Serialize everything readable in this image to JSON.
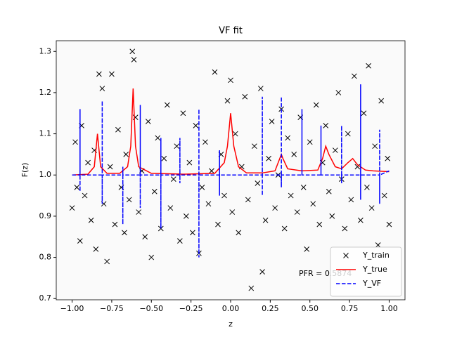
{
  "chart_data": {
    "type": "scatter",
    "title": "VF fit",
    "xlabel": "z",
    "ylabel": "F(z)",
    "xlim": [
      -1.1,
      1.1
    ],
    "ylim": [
      0.697,
      1.326
    ],
    "xticks": [
      {
        "value": -1,
        "label": "−1.00"
      },
      {
        "value": -0.75,
        "label": "−0.75"
      },
      {
        "value": -0.5,
        "label": "−0.50"
      },
      {
        "value": -0.25,
        "label": "−0.25"
      },
      {
        "value": 0,
        "label": "0.00"
      },
      0.25,
      {
        "value": 0.5,
        "label": "0.50"
      },
      0.75,
      {
        "value": 1,
        "label": "1.00"
      }
    ],
    "yticks": [
      0.7,
      0.8,
      0.9,
      {
        "value": 1.0,
        "label": "1.0"
      },
      1.1,
      1.2,
      1.3
    ],
    "legend": "lower right",
    "annotation": "PFR = 0.5874",
    "background": "#fafafa",
    "series": [
      {
        "name": "Y_train",
        "type": "scatter",
        "color": "#000000",
        "x": [
          -1.0,
          -0.98,
          -0.97,
          -0.95,
          -0.94,
          -0.92,
          -0.9,
          -0.88,
          -0.86,
          -0.85,
          -0.83,
          -0.81,
          -0.8,
          -0.78,
          -0.76,
          -0.75,
          -0.73,
          -0.71,
          -0.69,
          -0.67,
          -0.66,
          -0.64,
          -0.62,
          -0.61,
          -0.6,
          -0.58,
          -0.56,
          -0.54,
          -0.52,
          -0.5,
          -0.48,
          -0.46,
          -0.44,
          -0.42,
          -0.4,
          -0.38,
          -0.36,
          -0.34,
          -0.32,
          -0.3,
          -0.28,
          -0.26,
          -0.24,
          -0.22,
          -0.2,
          -0.18,
          -0.16,
          -0.14,
          -0.12,
          -0.1,
          -0.08,
          -0.06,
          -0.04,
          -0.02,
          0.0,
          0.01,
          0.03,
          0.05,
          0.07,
          0.09,
          0.11,
          0.13,
          0.15,
          0.17,
          0.19,
          0.2,
          0.22,
          0.24,
          0.26,
          0.28,
          0.3,
          0.32,
          0.34,
          0.36,
          0.38,
          0.4,
          0.42,
          0.44,
          0.46,
          0.48,
          0.5,
          0.52,
          0.54,
          0.56,
          0.58,
          0.6,
          0.62,
          0.64,
          0.66,
          0.68,
          0.7,
          0.72,
          0.74,
          0.76,
          0.78,
          0.8,
          0.82,
          0.84,
          0.86,
          0.87,
          0.89,
          0.91,
          0.93,
          0.95,
          0.97,
          0.99,
          1.0
        ],
        "y": [
          0.92,
          1.08,
          0.97,
          0.84,
          1.12,
          0.95,
          1.03,
          0.89,
          1.06,
          0.82,
          1.245,
          1.21,
          0.93,
          0.79,
          1.02,
          1.245,
          0.88,
          1.11,
          0.97,
          0.86,
          1.05,
          0.94,
          1.3,
          1.28,
          1.14,
          0.91,
          1.01,
          0.85,
          1.13,
          0.8,
          0.96,
          1.09,
          0.87,
          1.04,
          1.17,
          0.92,
          0.99,
          1.07,
          0.84,
          1.15,
          0.9,
          1.03,
          0.86,
          1.12,
          0.81,
          0.97,
          1.08,
          0.93,
          1.01,
          1.25,
          0.88,
          1.05,
          0.95,
          1.18,
          1.23,
          0.91,
          1.1,
          0.86,
          1.02,
          1.19,
          0.94,
          0.725,
          1.07,
          0.98,
          1.21,
          0.765,
          0.89,
          1.04,
          1.13,
          0.92,
          1.0,
          1.16,
          0.87,
          1.09,
          0.95,
          1.05,
          0.91,
          1.14,
          0.97,
          0.82,
          1.08,
          0.93,
          1.17,
          0.88,
          1.03,
          1.12,
          0.96,
          0.9,
          1.06,
          1.2,
          0.99,
          0.87,
          1.1,
          0.94,
          1.24,
          1.02,
          0.89,
          1.15,
          0.97,
          1.265,
          0.92,
          1.07,
          0.83,
          1.18,
          0.95,
          1.04,
          0.88
        ]
      },
      {
        "name": "Y_true",
        "type": "line",
        "color": "#ff0000",
        "x": [
          -1,
          -0.9,
          -0.86,
          -0.84,
          -0.82,
          -0.78,
          -0.7,
          -0.65,
          -0.63,
          -0.615,
          -0.6,
          -0.58,
          -0.5,
          -0.3,
          -0.1,
          -0.04,
          -0.02,
          0.0,
          0.02,
          0.05,
          0.1,
          0.2,
          0.28,
          0.31,
          0.32,
          0.33,
          0.36,
          0.45,
          0.55,
          0.58,
          0.6,
          0.62,
          0.66,
          0.7,
          0.74,
          0.77,
          0.8,
          0.85,
          0.9,
          1.0
        ],
        "y": [
          1.0,
          1.002,
          1.02,
          1.1,
          1.02,
          1.004,
          1.004,
          1.02,
          1.07,
          1.21,
          1.07,
          1.02,
          1.004,
          1.002,
          1.004,
          1.03,
          1.07,
          1.15,
          1.07,
          1.02,
          1.005,
          1.005,
          1.01,
          1.04,
          1.05,
          1.04,
          1.015,
          1.01,
          1.012,
          1.04,
          1.07,
          1.05,
          1.02,
          1.015,
          1.03,
          1.04,
          1.025,
          1.012,
          1.01,
          1.008
        ]
      },
      {
        "name": "Y_VF",
        "type": "line",
        "dashed": true,
        "color": "#0000ff",
        "x": [
          -1,
          -0.95,
          -0.95,
          -0.95,
          -0.95,
          -0.81,
          -0.81,
          -0.81,
          -0.81,
          -0.68,
          -0.68,
          -0.68,
          -0.68,
          -0.57,
          -0.57,
          -0.57,
          -0.57,
          -0.44,
          -0.44,
          -0.44,
          -0.44,
          -0.32,
          -0.32,
          -0.32,
          -0.32,
          -0.2,
          -0.2,
          -0.2,
          -0.2,
          -0.07,
          -0.07,
          -0.07,
          -0.07,
          0.2,
          0.2,
          0.2,
          0.2,
          0.32,
          0.32,
          0.32,
          0.32,
          0.45,
          0.45,
          0.45,
          0.45,
          0.57,
          0.57,
          0.57,
          0.57,
          0.7,
          0.7,
          0.7,
          0.7,
          0.82,
          0.82,
          0.82,
          0.82,
          0.94,
          0.94,
          0.94,
          0.94,
          1
        ],
        "y": [
          1.0,
          1.0,
          1.16,
          0.96,
          1.0,
          1.0,
          1.18,
          0.93,
          1.0,
          1.0,
          1.02,
          0.88,
          1.0,
          1.0,
          1.17,
          0.92,
          1.0,
          1.0,
          1.09,
          0.87,
          1.0,
          1.0,
          1.09,
          0.98,
          1.0,
          1.0,
          1.16,
          0.8,
          1.0,
          1.0,
          1.06,
          0.95,
          1.0,
          1.0,
          1.19,
          0.95,
          1.0,
          1.0,
          1.19,
          0.97,
          1.0,
          1.0,
          1.16,
          1.0,
          1.0,
          1.0,
          1.12,
          1.0,
          1.0,
          1.0,
          1.12,
          0.98,
          1.0,
          1.0,
          1.22,
          0.94,
          1.0,
          1.0,
          1.11,
          0.93,
          1.0,
          1.01
        ]
      }
    ]
  }
}
